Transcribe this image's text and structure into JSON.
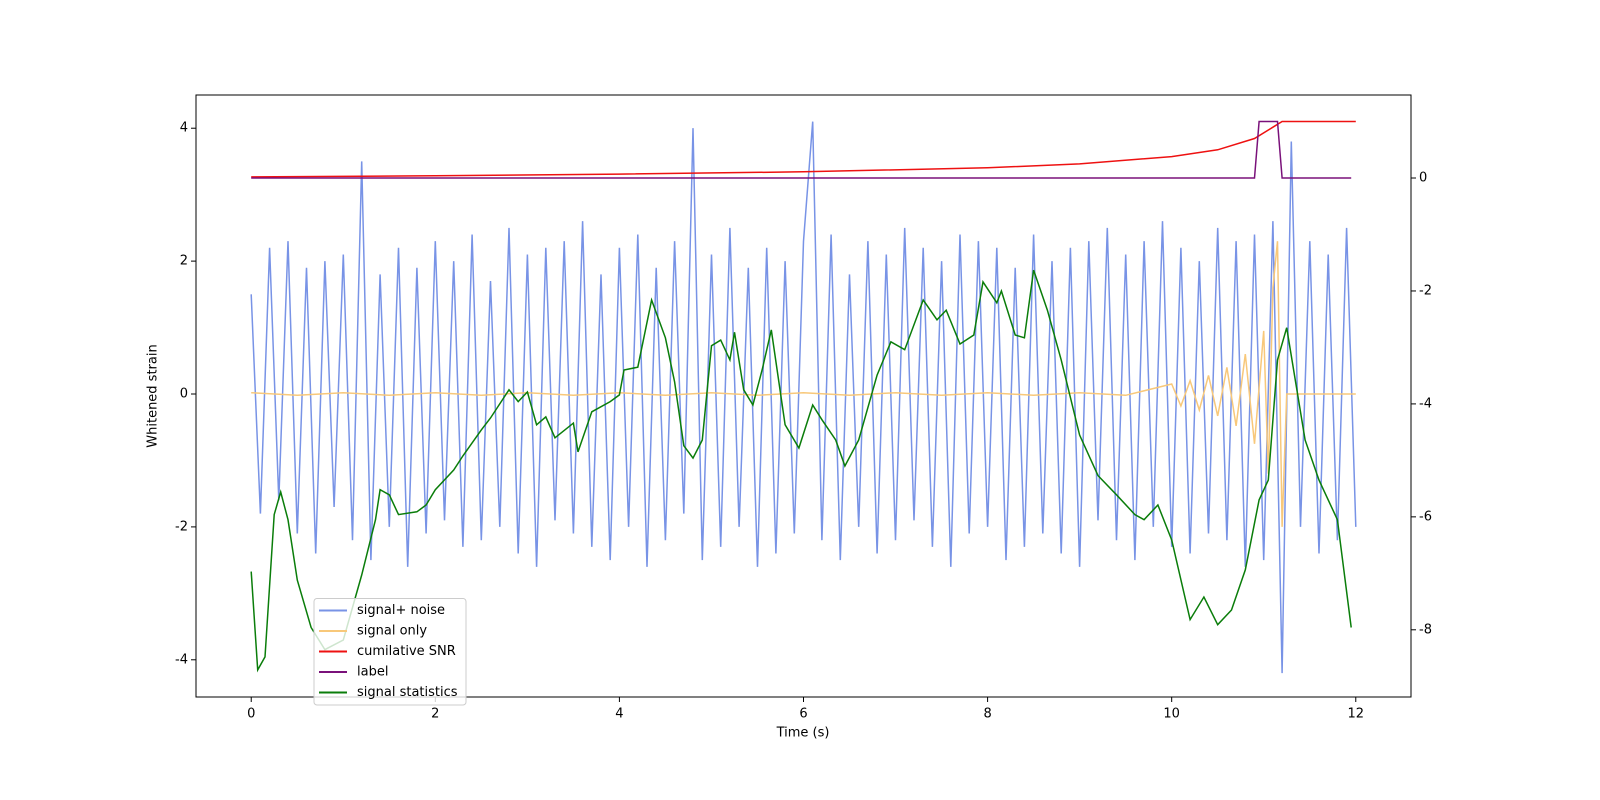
{
  "chart_data": {
    "type": "line",
    "xlabel": "Time (s)",
    "ylabel": "Whitened strain",
    "xlim": [
      -0.6,
      12.6
    ],
    "xticks": [
      0,
      2,
      4,
      6,
      8,
      10,
      12
    ],
    "ylim": [
      -4.56,
      4.5
    ],
    "yticks": [
      -4,
      -2,
      0,
      2,
      4
    ],
    "y2lim": [
      -9.19,
      1.47
    ],
    "y2ticks": [
      -8,
      -6,
      -4,
      -2,
      0
    ],
    "legend": "lower left",
    "series": [
      {
        "name": "signal+ noise",
        "color": "#7893e6",
        "x": [
          0,
          0.1,
          0.2,
          0.3,
          0.4,
          0.5,
          0.6,
          0.7,
          0.8,
          0.9,
          1,
          1.1,
          1.2,
          1.3,
          1.4,
          1.5,
          1.6,
          1.7,
          1.8,
          1.9,
          2,
          2.1,
          2.2,
          2.3,
          2.4,
          2.5,
          2.6,
          2.7,
          2.8,
          2.9,
          3,
          3.1,
          3.2,
          3.3,
          3.4,
          3.5,
          3.6,
          3.7,
          3.8,
          3.9,
          4,
          4.1,
          4.2,
          4.3,
          4.4,
          4.5,
          4.6,
          4.7,
          4.8,
          4.9,
          5,
          5.1,
          5.2,
          5.3,
          5.4,
          5.5,
          5.6,
          5.7,
          5.8,
          5.9,
          6,
          6.1,
          6.2,
          6.3,
          6.4,
          6.5,
          6.6,
          6.7,
          6.8,
          6.9,
          7,
          7.1,
          7.2,
          7.3,
          7.4,
          7.5,
          7.6,
          7.7,
          7.8,
          7.9,
          8,
          8.1,
          8.2,
          8.3,
          8.4,
          8.5,
          8.6,
          8.7,
          8.8,
          8.9,
          9,
          9.1,
          9.2,
          9.3,
          9.4,
          9.5,
          9.6,
          9.7,
          9.8,
          9.9,
          10,
          10.1,
          10.2,
          10.3,
          10.4,
          10.5,
          10.6,
          10.7,
          10.8,
          10.9,
          11,
          11.1,
          11.2,
          11.3,
          11.4,
          11.5,
          11.6,
          11.7,
          11.8,
          11.9,
          12
        ],
        "values": [
          1.5,
          -1.8,
          2.2,
          -1.6,
          2.3,
          -2.1,
          1.9,
          -2.4,
          2.0,
          -1.7,
          2.1,
          -2.2,
          3.5,
          -2.5,
          1.8,
          -2.0,
          2.2,
          -2.6,
          1.9,
          -2.1,
          2.3,
          -1.9,
          2.0,
          -2.3,
          2.4,
          -2.2,
          1.7,
          -2.0,
          2.5,
          -2.4,
          2.1,
          -2.6,
          2.2,
          -1.9,
          2.3,
          -2.1,
          2.6,
          -2.3,
          1.8,
          -2.5,
          2.2,
          -2.0,
          2.4,
          -2.6,
          1.9,
          -2.2,
          2.3,
          -1.8,
          4.0,
          -2.5,
          2.1,
          -2.3,
          2.5,
          -2.0,
          1.9,
          -2.6,
          2.2,
          -2.4,
          2.0,
          -2.1,
          2.3,
          4.1,
          -2.2,
          2.4,
          -2.5,
          1.8,
          -2.0,
          2.3,
          -2.4,
          2.1,
          -2.2,
          2.5,
          -1.9,
          2.2,
          -2.3,
          2.0,
          -2.6,
          2.4,
          -2.1,
          2.3,
          -2.0,
          2.2,
          -2.5,
          1.9,
          -2.3,
          2.4,
          -2.1,
          2.0,
          -2.4,
          2.2,
          -2.6,
          2.3,
          -1.9,
          2.5,
          -2.2,
          2.1,
          -2.5,
          2.3,
          -2.0,
          2.6,
          -2.3,
          2.2,
          -2.4,
          2.0,
          -2.1,
          2.5,
          -2.2,
          2.3,
          -2.6,
          2.4,
          -2.5,
          2.6,
          -4.2,
          3.8,
          -2.0,
          2.3,
          -2.4,
          2.1,
          -2.2,
          2.5,
          -2.0
        ]
      },
      {
        "name": "signal only",
        "color": "#f8c87a",
        "x": [
          0,
          0.5,
          1,
          1.5,
          2,
          2.5,
          3,
          3.5,
          4,
          4.5,
          5,
          5.5,
          6,
          6.5,
          7,
          7.5,
          8,
          8.5,
          9,
          9.5,
          10,
          10.1,
          10.2,
          10.3,
          10.4,
          10.5,
          10.6,
          10.7,
          10.8,
          10.9,
          11,
          11.05,
          11.1,
          11.15,
          11.2,
          11.25,
          12
        ],
        "values": [
          0.02,
          -0.02,
          0.02,
          -0.02,
          0.02,
          -0.02,
          0.02,
          -0.02,
          0.02,
          -0.02,
          0.02,
          -0.02,
          0.02,
          -0.02,
          0.02,
          -0.02,
          0.02,
          -0.02,
          0.02,
          -0.02,
          0.15,
          -0.18,
          0.2,
          -0.24,
          0.28,
          -0.33,
          0.4,
          -0.48,
          0.6,
          -0.75,
          0.95,
          -1.2,
          1.6,
          2.3,
          -2.0,
          0,
          0
        ]
      },
      {
        "name": "cumilative SNR",
        "color": "#ee1111",
        "axis": "y2",
        "x": [
          0,
          2,
          4,
          6,
          8,
          9,
          10,
          10.5,
          10.9,
          11.1,
          11.2,
          12
        ],
        "values": [
          0.02,
          0.04,
          0.07,
          0.11,
          0.18,
          0.25,
          0.38,
          0.5,
          0.7,
          0.9,
          1.0,
          1.0
        ]
      },
      {
        "name": "label",
        "color": "#7a117a",
        "axis": "y2",
        "x": [
          0,
          10.9,
          10.95,
          11.15,
          11.2,
          11.95
        ],
        "values": [
          0,
          0,
          1,
          1,
          0,
          0
        ]
      },
      {
        "name": "signal statistics",
        "color": "#0a7d0a",
        "axis": "y2",
        "x": [
          0,
          0.07,
          0.15,
          0.25,
          0.32,
          0.4,
          0.5,
          0.65,
          0.8,
          1,
          1.2,
          1.35,
          1.4,
          1.5,
          1.6,
          1.8,
          1.9,
          2,
          2.2,
          2.3,
          2.5,
          2.6,
          2.8,
          2.9,
          3,
          3.1,
          3.2,
          3.3,
          3.5,
          3.55,
          3.7,
          3.9,
          4,
          4.05,
          4.2,
          4.35,
          4.5,
          4.6,
          4.7,
          4.8,
          4.9,
          5,
          5.1,
          5.2,
          5.25,
          5.35,
          5.45,
          5.55,
          5.65,
          5.8,
          5.95,
          6.1,
          6.2,
          6.35,
          6.45,
          6.6,
          6.8,
          6.95,
          7.1,
          7.3,
          7.45,
          7.55,
          7.7,
          7.85,
          7.95,
          8.1,
          8.15,
          8.3,
          8.4,
          8.5,
          8.65,
          8.8,
          9,
          9.2,
          9.4,
          9.6,
          9.7,
          9.85,
          10,
          10.2,
          10.35,
          10.5,
          10.65,
          10.8,
          10.95,
          11.05,
          11.15,
          11.25,
          11.45,
          11.6,
          11.8,
          11.95
        ],
        "values": [
          -6.97,
          -8.71,
          -8.48,
          -5.96,
          -5.56,
          -6.05,
          -7.12,
          -7.96,
          -8.35,
          -8.18,
          -7.03,
          -6.05,
          -5.52,
          -5.61,
          -5.96,
          -5.91,
          -5.79,
          -5.52,
          -5.17,
          -4.92,
          -4.46,
          -4.25,
          -3.75,
          -3.96,
          -3.79,
          -4.37,
          -4.23,
          -4.6,
          -4.34,
          -4.85,
          -4.14,
          -3.96,
          -3.84,
          -3.4,
          -3.35,
          -2.16,
          -2.83,
          -3.61,
          -4.74,
          -4.96,
          -4.64,
          -2.97,
          -2.87,
          -3.22,
          -2.73,
          -3.75,
          -4.02,
          -3.4,
          -2.69,
          -4.37,
          -4.78,
          -4.02,
          -4.28,
          -4.64,
          -5.1,
          -4.64,
          -3.49,
          -2.9,
          -3.04,
          -2.16,
          -2.51,
          -2.34,
          -2.94,
          -2.78,
          -1.84,
          -2.21,
          -2,
          -2.78,
          -2.83,
          -1.63,
          -2.34,
          -3.22,
          -4.55,
          -5.27,
          -5.61,
          -5.96,
          -6.05,
          -5.79,
          -6.41,
          -7.82,
          -7.42,
          -7.91,
          -7.65,
          -6.94,
          -5.7,
          -5.35,
          -3.22,
          -2.65,
          -4.64,
          -5.35,
          -6.05,
          -7.96
        ]
      }
    ]
  }
}
